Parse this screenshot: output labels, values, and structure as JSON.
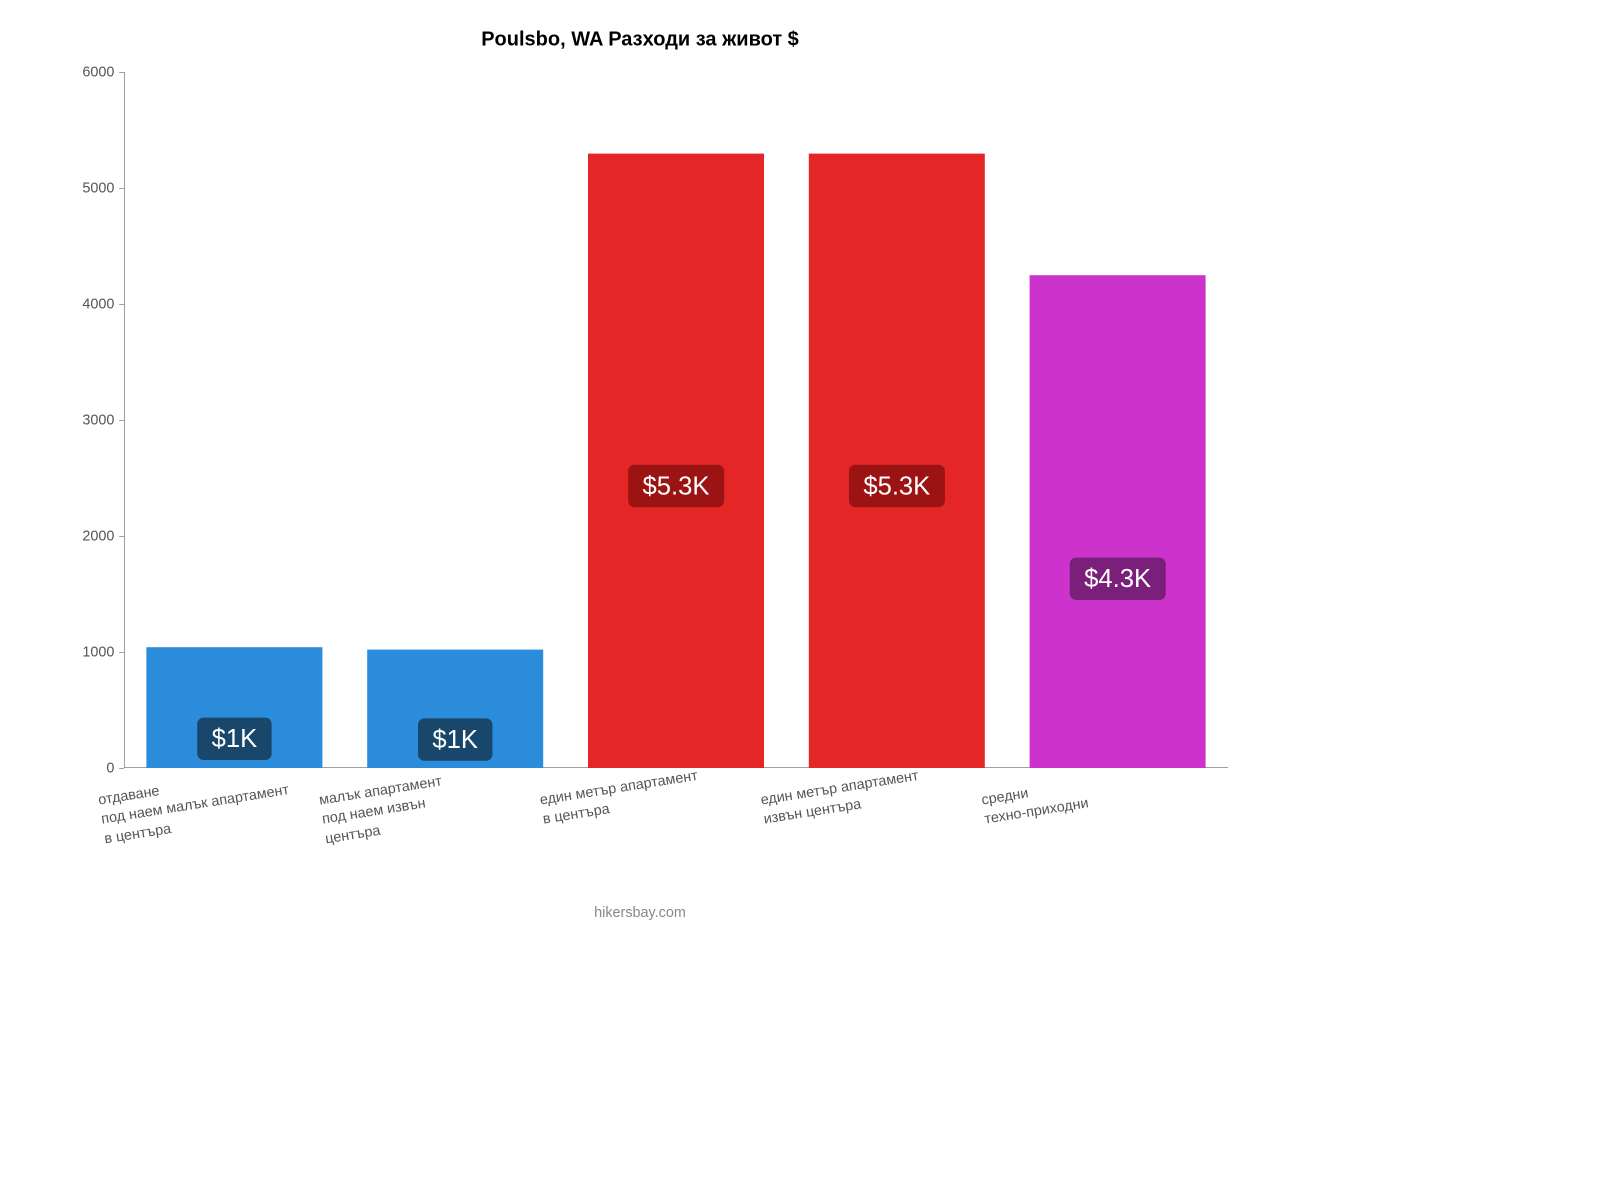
{
  "chart": {
    "type": "bar",
    "title": "Poulsbo, WA Разходи за живот $",
    "title_fontsize": 25,
    "title_color": "#000000",
    "background_color": "#ffffff",
    "axis_color": "#888888",
    "tick_color": "#555555",
    "tick_fontsize": 18,
    "ylim": [
      0,
      6000
    ],
    "ytick_step": 1000,
    "yticks": [
      0,
      1000,
      2000,
      3000,
      4000,
      5000,
      6000
    ],
    "bar_width_pct": 16.0,
    "bar_gap_pct": 4.0,
    "categories": [
      "отдаване\nпод наем малък апартамент\nв центъра",
      "малък апартамент\nпод наем извън\nцентъра",
      "един метър апартамент\nв центъра",
      "един метър апартамент\nизвън центъра",
      "средни\nтехно-приходни"
    ],
    "values": [
      1040,
      1020,
      5300,
      5300,
      4250
    ],
    "value_labels": [
      "$1K",
      "$1K",
      "$5.3K",
      "$5.3K",
      "$4.3K"
    ],
    "bar_colors": [
      "#2b8cdb",
      "#2b8cdb",
      "#e42627",
      "#e42627",
      "#cc33cc"
    ],
    "badge_bg_colors": [
      "#18476b",
      "#18476b",
      "#9c1314",
      "#9c1314",
      "#7a1f7a"
    ],
    "badge_text_color": "#ffffff",
    "badge_fontsize": 32,
    "xlabel_rotate_deg": -9,
    "xlabel_fontsize": 18,
    "footer": "hikersbay.com",
    "footer_color": "#888888",
    "footer_fontsize": 18
  }
}
